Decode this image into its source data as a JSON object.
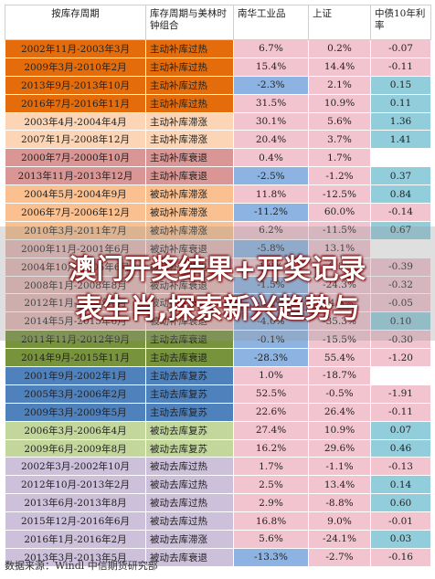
{
  "header": {
    "col1": "按库存周期",
    "col2": "库存周期与美林时钟组合",
    "col3": "南华工业品",
    "col4": "上证",
    "col5": "中债10年利率"
  },
  "rows": [
    {
      "period": "2002年11月-2003年3月",
      "cycle": "主动补库过热",
      "nanhua": "6.7%",
      "sh": "0.2%",
      "bond": "-0.07",
      "pc": "c-orange",
      "nc": "n-pink",
      "bc": "n-pink"
    },
    {
      "period": "2009年3月-2010年2月",
      "cycle": "主动补库过热",
      "nanhua": "15.4%",
      "sh": "14.4%",
      "bond": "-0.11",
      "pc": "c-orange",
      "nc": "n-pink",
      "bc": "n-pink"
    },
    {
      "period": "2013年9月-2013年10月",
      "cycle": "主动补库过热",
      "nanhua": "-2.3%",
      "sh": "2.1%",
      "bond": "0.15",
      "pc": "c-orange",
      "nc": "n-blue",
      "bc": "n-teal"
    },
    {
      "period": "2016年7月-2016年11月",
      "cycle": "主动补库过热",
      "nanhua": "31.5%",
      "sh": "10.9%",
      "bond": "0.11",
      "pc": "c-orange",
      "nc": "n-pink",
      "bc": "n-teal"
    },
    {
      "period": "2003年4月-2004年4月",
      "cycle": "主动补库滞涨",
      "nanhua": "30.1%",
      "sh": "5.6%",
      "bond": "1.36",
      "pc": "c-peach",
      "nc": "n-pink",
      "bc": "n-teal"
    },
    {
      "period": "2007年1月-2008年12月",
      "cycle": "主动补库滞涨",
      "nanhua": "20.4%",
      "sh": "3.7%",
      "bond": "1.41",
      "pc": "c-peach",
      "nc": "n-pink",
      "bc": "n-teal"
    },
    {
      "period": "2000年7月-2000年10月",
      "cycle": "主动补库衰退",
      "nanhua": "0.4%",
      "sh": "1.7%",
      "bond": "",
      "pc": "c-rose",
      "nc": "n-pink",
      "bc": "n-white"
    },
    {
      "period": "2013年11月-2013年12月",
      "cycle": "主动补库衰退",
      "nanhua": "-2.5%",
      "sh": "-1.2%",
      "bond": "0.37",
      "pc": "c-rose",
      "nc": "n-blue",
      "bc": "n-teal"
    },
    {
      "period": "2004年5月-2004年9月",
      "cycle": "被动补库滞涨",
      "nanhua": "11.8%",
      "sh": "-12.5%",
      "bond": "0.84",
      "pc": "c-tan",
      "nc": "n-pink",
      "bc": "n-teal"
    },
    {
      "period": "2006年7月-2006年12月",
      "cycle": "被动补库滞涨",
      "nanhua": "-11.2%",
      "sh": "60.0%",
      "bond": "-0.14",
      "pc": "c-tan",
      "nc": "n-blue",
      "bc": "n-pink"
    },
    {
      "period": "2010年3月-2011年7月",
      "cycle": "被动补库滞涨",
      "nanhua": "6.2%",
      "sh": "-11.5%",
      "bond": "0.67",
      "pc": "c-tan",
      "nc": "n-pink",
      "bc": "n-teal"
    },
    {
      "period": "2000年11月-2001年6月",
      "cycle": "被动补库衰退",
      "nanhua": "-5.8%",
      "sh": "13.1%",
      "bond": "",
      "pc": "c-pink",
      "nc": "n-blue",
      "bc": "n-white"
    },
    {
      "period": "2004年10月-2005年6月",
      "cycle": "被动补库衰退",
      "nanhua": "1.0%",
      "sh": "-9.3%",
      "bond": "-0.39",
      "pc": "c-pink",
      "nc": "n-pink",
      "bc": "n-pink"
    },
    {
      "period": "2008年1月-2008年8月",
      "cycle": "被动补库衰退",
      "nanhua": "-1.5%",
      "sh": "-24.3%",
      "bond": "-0.32",
      "pc": "c-pink",
      "nc": "n-blue",
      "bc": "n-pink"
    },
    {
      "period": "2012年1月-2012年8月",
      "cycle": "被动补库衰退",
      "nanhua": "-3.2%",
      "sh": "-4.5%",
      "bond": "-0.05",
      "pc": "c-pink",
      "nc": "n-blue",
      "bc": "n-pink"
    },
    {
      "period": "2014年5月-2015年6月",
      "cycle": "被动补库衰退",
      "nanhua": "-4.0%",
      "sh": "-35.3%",
      "bond": "0.10",
      "pc": "c-pink",
      "nc": "n-blue",
      "bc": "n-teal"
    },
    {
      "period": "2011年11月-2012年9月",
      "cycle": "主动去库衰退",
      "nanhua": "-0.1%",
      "sh": "-15.5%",
      "bond": "-0.30",
      "pc": "c-green",
      "nc": "n-blue",
      "bc": "n-pink"
    },
    {
      "period": "2014年9月-2015年11月",
      "cycle": "主动去库衰退",
      "nanhua": "-28.3%",
      "sh": "55.4%",
      "bond": "-1.20",
      "pc": "c-green",
      "nc": "n-blue",
      "bc": "n-pink"
    },
    {
      "period": "2001年9月-2002年1月",
      "cycle": "主动去库复苏",
      "nanhua": "1.0%",
      "sh": "-18.7%",
      "bond": "",
      "pc": "c-blue",
      "nc": "n-pink",
      "bc": "n-white"
    },
    {
      "period": "2005年3月-2006年2月",
      "cycle": "主动去库复苏",
      "nanhua": "52.5%",
      "sh": "-0.5%",
      "bond": "-1.91",
      "pc": "c-blue",
      "nc": "n-pink",
      "bc": "n-pink"
    },
    {
      "period": "2009年3月-2009年5月",
      "cycle": "主动去库复苏",
      "nanhua": "22.6%",
      "sh": "26.4%",
      "bond": "-0.11",
      "pc": "c-blue",
      "nc": "n-pink",
      "bc": "n-pink"
    },
    {
      "period": "2006年3月-2006年4月",
      "cycle": "被动去库复苏",
      "nanhua": "27.4%",
      "sh": "10.9%",
      "bond": "0.07",
      "pc": "c-lgreen",
      "nc": "n-pink",
      "bc": "n-teal"
    },
    {
      "period": "2009年6月-2009年8月",
      "cycle": "被动去库复苏",
      "nanhua": "16.2%",
      "sh": "29.6%",
      "bond": "0.46",
      "pc": "c-lgreen",
      "nc": "n-pink",
      "bc": "n-teal"
    },
    {
      "period": "2002年3月-2002年10月",
      "cycle": "被动去库过热",
      "nanhua": "1.7%",
      "sh": "-1.1%",
      "bond": "-0.13",
      "pc": "c-lav",
      "nc": "n-pink",
      "bc": "n-pink"
    },
    {
      "period": "2012年10月-2013年2月",
      "cycle": "被动去库过热",
      "nanhua": "2.5%",
      "sh": "13.4%",
      "bond": "0.14",
      "pc": "c-lav",
      "nc": "n-pink",
      "bc": "n-teal"
    },
    {
      "period": "2013年6月-2013年8月",
      "cycle": "被动去库过热",
      "nanhua": "2.9%",
      "sh": "-8.8%",
      "bond": "0.60",
      "pc": "c-lav",
      "nc": "n-pink",
      "bc": "n-teal"
    },
    {
      "period": "2015年12月-2016年6月",
      "cycle": "被动去库过热",
      "nanhua": "16.8%",
      "sh": "9.0%",
      "bond": "-0.01",
      "pc": "c-lav",
      "nc": "n-pink",
      "bc": "n-pink"
    },
    {
      "period": "2016年1月-2016年2月",
      "cycle": "被动去库滞涨",
      "nanhua": "5.6%",
      "sh": "-24.1%",
      "bond": "0.03",
      "pc": "c-lav",
      "nc": "n-pink",
      "bc": "n-teal"
    },
    {
      "period": "2013年3月-2013年5月",
      "cycle": "被动去库衰退",
      "nanhua": "-13.3%",
      "sh": "-2.7%",
      "bond": "-0.16",
      "pc": "c-lav",
      "nc": "n-blue",
      "bc": "n-pink"
    }
  ],
  "source": "数据来源：Windl   中信期货研究部",
  "overlay": {
    "line1": "澳门开奖结果+开奖记录",
    "line2": "表生肖,探索新兴趋势与"
  }
}
